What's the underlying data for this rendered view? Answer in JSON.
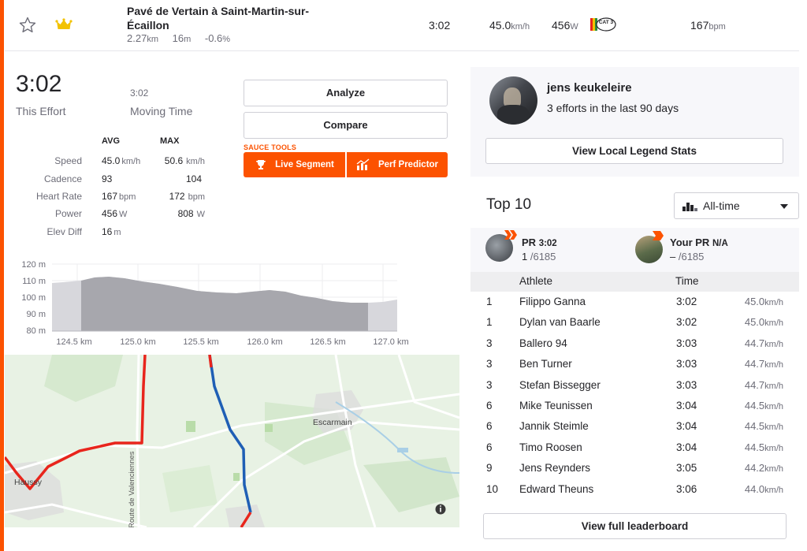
{
  "segment": {
    "name_line1": "Pavé de Vertain à Saint-Martin-sur-",
    "name_line2": "Écaillon",
    "distance_val": "2.27",
    "distance_unit": "km",
    "elev_val": "16",
    "elev_unit": "m",
    "grade_val": "-0.6",
    "grade_unit": "%",
    "time": "3:02",
    "speed_val": "45.0",
    "speed_unit": "km/h",
    "power_val": "456",
    "power_unit": "W",
    "category_badge": "CAT 3",
    "hr_val": "167",
    "hr_unit": "bpm"
  },
  "effort": {
    "time": "3:02",
    "time_label": "This Effort",
    "moving_time": "3:02",
    "moving_label": "Moving Time",
    "col_avg": "AVG",
    "col_max": "MAX",
    "rows": [
      {
        "label": "Speed",
        "avg": "45.0",
        "avg_unit": "km/h",
        "max": "50.6",
        "max_unit": "km/h"
      },
      {
        "label": "Cadence",
        "avg": "93",
        "avg_unit": "",
        "max": "104",
        "max_unit": ""
      },
      {
        "label": "Heart Rate",
        "avg": "167",
        "avg_unit": "bpm",
        "max": "172",
        "max_unit": "bpm"
      },
      {
        "label": "Power",
        "avg": "456",
        "avg_unit": "W",
        "max": "808",
        "max_unit": "W"
      },
      {
        "label": "Elev Diff",
        "avg": "16",
        "avg_unit": "m",
        "max": "",
        "max_unit": ""
      }
    ]
  },
  "actions": {
    "analyze": "Analyze",
    "compare": "Compare",
    "sauce_label": "SAUCE TOOLS",
    "live_segment": "Live Segment",
    "perf_predictor": "Perf Predictor"
  },
  "elevation_chart": {
    "y_ticks": [
      "120 m",
      "110 m",
      "100 m",
      "90 m",
      "80 m"
    ],
    "x_ticks": [
      "124.5 km",
      "125.0 km",
      "125.5 km",
      "126.0 km",
      "126.5 km",
      "127.0 km"
    ]
  },
  "map": {
    "places": [
      "Escarmain",
      "Haussy",
      "Route de Valenciennes"
    ],
    "info_icon": "info-icon"
  },
  "legend": {
    "name": "jens keukeleire",
    "efforts": "3 efforts in the last 90 days",
    "button": "View Local Legend Stats"
  },
  "leaderboard": {
    "title": "Top 10",
    "filter": "All-time",
    "pr_label": "PR",
    "pr_time": "3:02",
    "pr_rank": "1",
    "pr_total": "/6185",
    "your_pr_label": "Your PR",
    "your_pr_value": "N/A",
    "your_rank": "–",
    "your_total": "/6185",
    "col_athlete": "Athlete",
    "col_time": "Time",
    "rows": [
      {
        "rank": "1",
        "name": "Filippo Ganna",
        "time": "3:02",
        "speed": "45.0"
      },
      {
        "rank": "1",
        "name": "Dylan van Baarle",
        "time": "3:02",
        "speed": "45.0"
      },
      {
        "rank": "3",
        "name": "Ballero 94",
        "time": "3:03",
        "speed": "44.7"
      },
      {
        "rank": "3",
        "name": "Ben Turner",
        "time": "3:03",
        "speed": "44.7"
      },
      {
        "rank": "3",
        "name": "Stefan Bissegger",
        "time": "3:03",
        "speed": "44.7"
      },
      {
        "rank": "6",
        "name": "Mike Teunissen",
        "time": "3:04",
        "speed": "44.5"
      },
      {
        "rank": "6",
        "name": "Jannik Steimle",
        "time": "3:04",
        "speed": "44.5"
      },
      {
        "rank": "6",
        "name": "Timo Roosen",
        "time": "3:04",
        "speed": "44.5"
      },
      {
        "rank": "9",
        "name": "Jens Reynders",
        "time": "3:05",
        "speed": "44.2"
      },
      {
        "rank": "10",
        "name": "Edward Theuns",
        "time": "3:06",
        "speed": "44.0"
      }
    ],
    "speed_unit": "km/h",
    "view_full": "View full leaderboard"
  },
  "colors": {
    "accent": "#fc5200",
    "gold": "#f2c200",
    "route_red": "#e8251c",
    "route_blue": "#1f5fb5",
    "map_bg": "#e8f2e4"
  }
}
